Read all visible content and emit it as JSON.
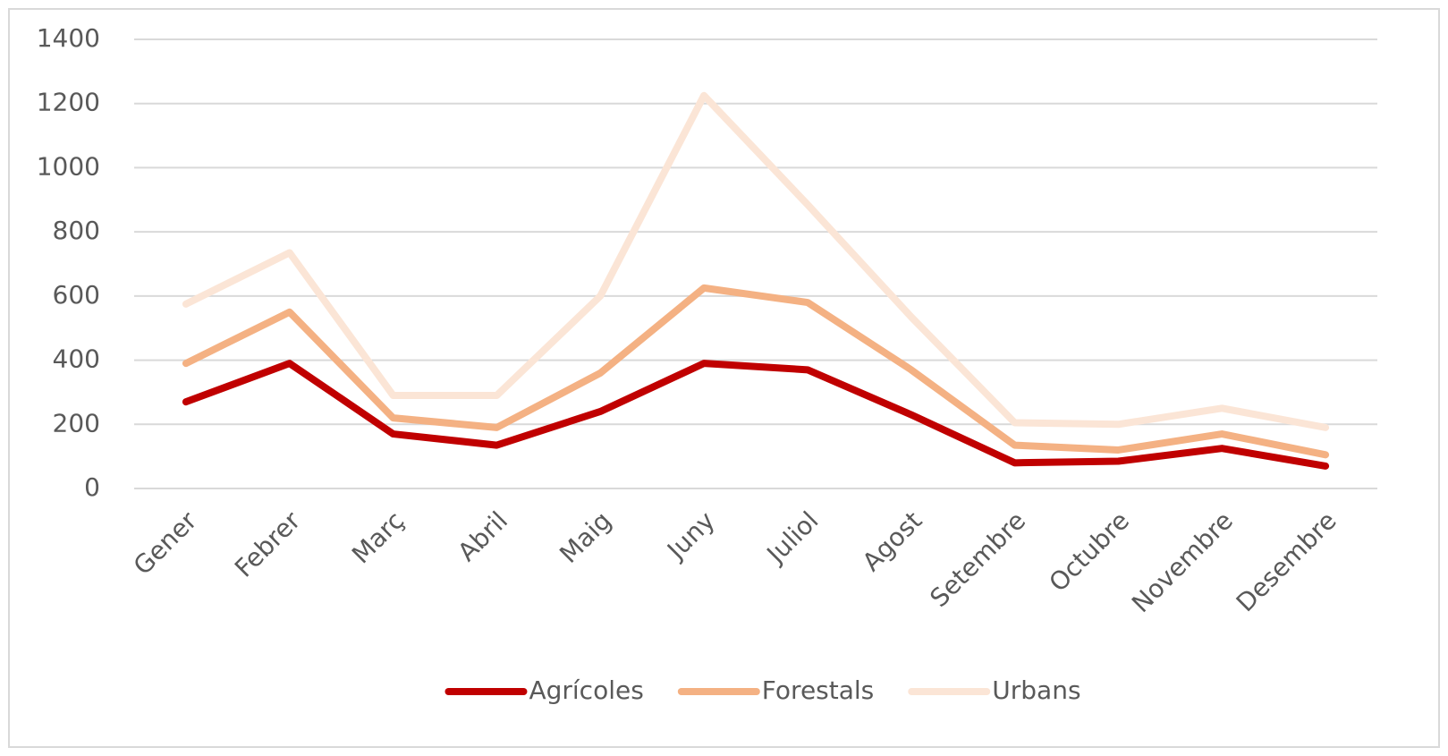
{
  "chart_data": {
    "type": "line",
    "categories": [
      "Gener",
      "Febrer",
      "Març",
      "Abril",
      "Maig",
      "Juny",
      "Juliol",
      "Agost",
      "Setembre",
      "Octubre",
      "Novembre",
      "Desembre"
    ],
    "series": [
      {
        "name": "Agrícoles",
        "color": "#c00000",
        "values": [
          270,
          390,
          170,
          135,
          240,
          390,
          370,
          230,
          80,
          85,
          125,
          70
        ]
      },
      {
        "name": "Forestals",
        "color": "#f4b183",
        "values": [
          390,
          550,
          220,
          190,
          360,
          625,
          580,
          370,
          135,
          120,
          170,
          105
        ]
      },
      {
        "name": "Urbans",
        "color": "#fbe5d6",
        "values": [
          575,
          735,
          290,
          290,
          600,
          1225,
          885,
          535,
          205,
          200,
          250,
          190
        ]
      }
    ],
    "ylim": [
      0,
      1400
    ],
    "yticks": [
      0,
      200,
      400,
      600,
      800,
      1000,
      1200,
      1400
    ],
    "grid": true,
    "legend": "bottom"
  }
}
